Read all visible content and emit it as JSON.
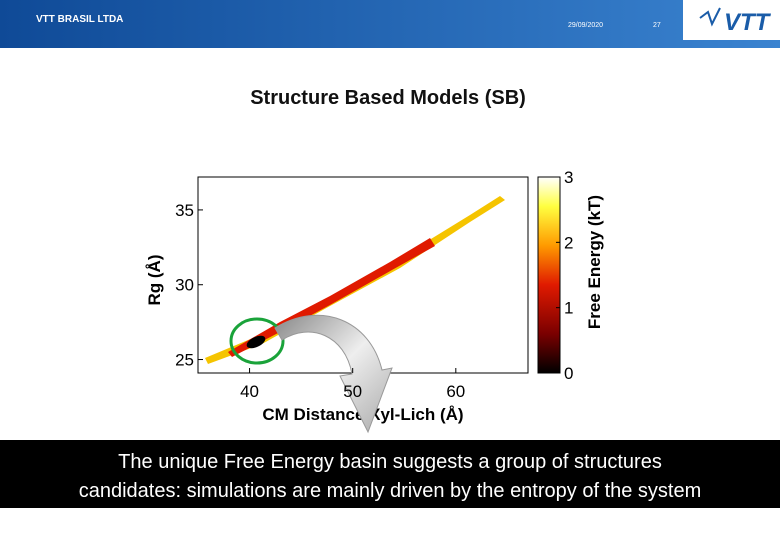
{
  "header": {
    "org": "VTT BRASIL LTDA",
    "date": "29/09/2020",
    "page": "27",
    "logo": "VTT"
  },
  "title": "Structure Based Models (SB)",
  "figure": {
    "x_label": "CM Distance Xyl-Lich (Å)",
    "y_label": "Rg (Å)",
    "colorbar_label": "Free Energy (kT)",
    "xlim": [
      35,
      67
    ],
    "xticks": [
      40,
      50,
      60
    ],
    "ylim": [
      24.1,
      37.2
    ],
    "yticks": [
      25,
      30,
      35
    ],
    "colorbar_lim": [
      0,
      3
    ],
    "colorbar_ticks": [
      0,
      1,
      2,
      3
    ]
  },
  "caption": [
    "The unique Free Energy basin suggests a group of structures",
    "candidates: simulations are mainly  driven by the entropy of the system"
  ]
}
